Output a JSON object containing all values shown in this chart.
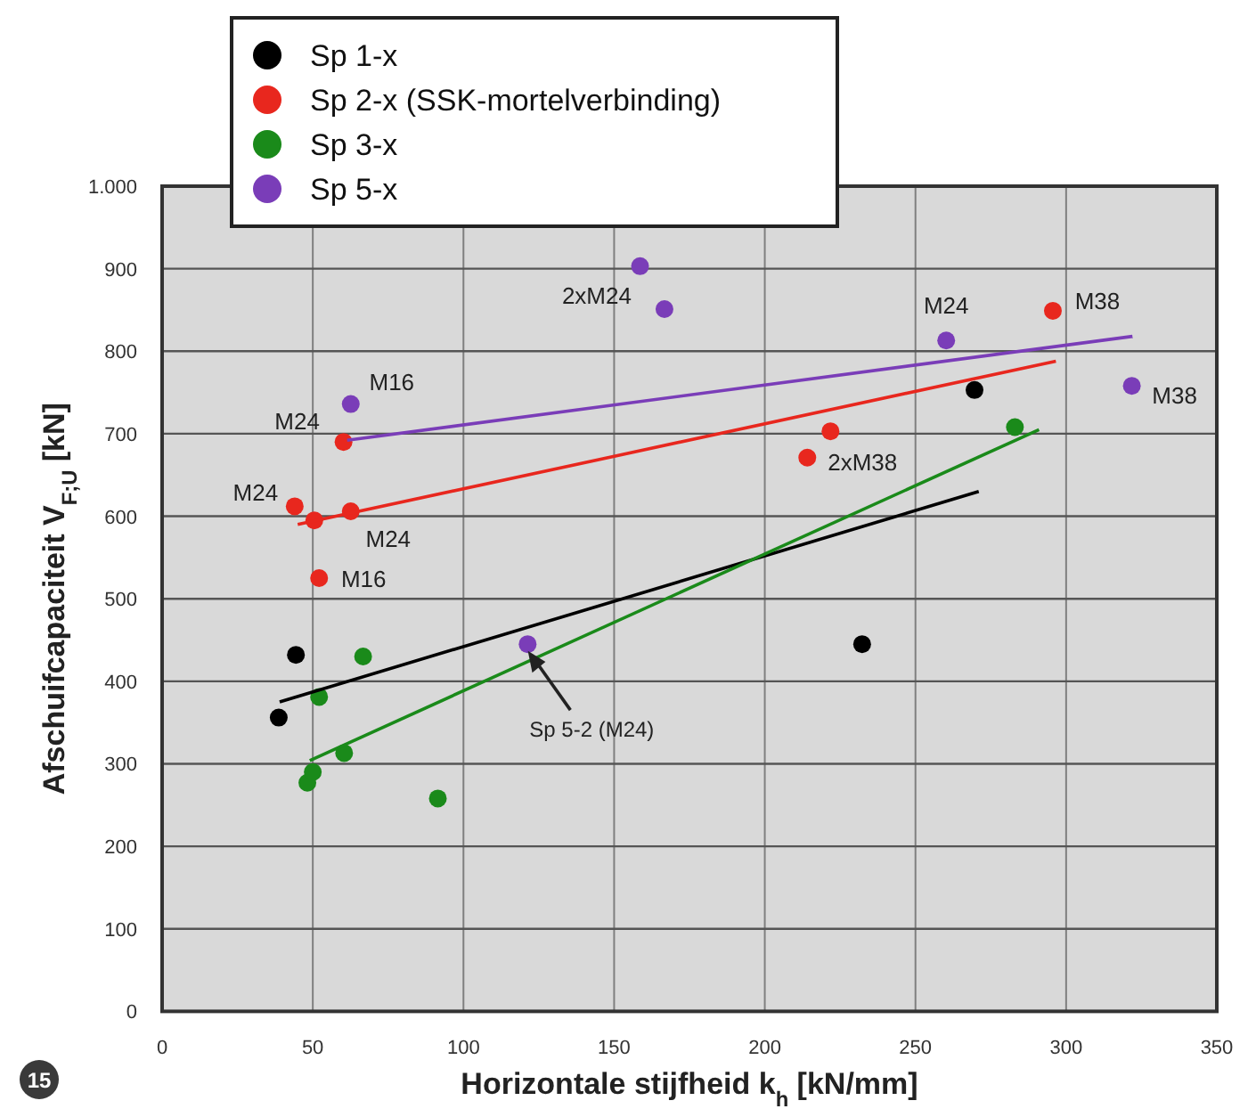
{
  "chart_data": {
    "type": "scatter",
    "xlabel": "Horizontale stijfheid k$_{h}$ [kN/mm]",
    "ylabel": "Afschuifcapaciteit V$_{F;U}$ [kN]",
    "xlim": [
      0,
      350
    ],
    "xticks": [
      0,
      50,
      100,
      150,
      200,
      250,
      300,
      350
    ],
    "ylim": [
      0,
      1000
    ],
    "yticks": [
      0,
      100,
      200,
      300,
      400,
      500,
      600,
      700,
      800,
      900,
      {
        "value": 1000,
        "label": "1.000"
      }
    ],
    "grid": true,
    "legend": "top left",
    "marker": "circle",
    "series": [
      {
        "name": "Sp 1-x",
        "color": "#000000",
        "x": [
          38.7,
          44.4,
          232.3,
          269.6
        ],
        "values": [
          356,
          432,
          445,
          753
        ]
      },
      {
        "name": "Sp 2-x (SSK-mortelverbinding)",
        "color": "#e8271e",
        "x": [
          44,
          50.5,
          52.1,
          60.2,
          62.6,
          214.1,
          221.8,
          295.6
        ],
        "values": [
          612,
          595,
          525,
          690,
          606,
          671,
          703,
          849
        ]
      },
      {
        "name": "Sp 3-x",
        "color": "#1a8a1a",
        "x": [
          48.2,
          50,
          52.1,
          60.4,
          66.7,
          91.5,
          283
        ],
        "values": [
          277,
          290,
          381,
          313,
          430,
          258,
          708
        ]
      },
      {
        "name": "Sp 5-x",
        "color": "#7a3db8",
        "x": [
          62.6,
          121.3,
          158.6,
          166.7,
          260.2,
          321.8
        ],
        "values": [
          736,
          445,
          903,
          851,
          813,
          758
        ]
      },
      {
        "type": "line",
        "marker": "none",
        "color": "#000000",
        "x": [
          39,
          271
        ],
        "values": [
          375,
          630
        ]
      },
      {
        "type": "line",
        "marker": "none",
        "color": "#e8271e",
        "x": [
          45,
          296.6
        ],
        "values": [
          590,
          788
        ]
      },
      {
        "type": "line",
        "marker": "none",
        "color": "#1a8a1a",
        "x": [
          49,
          291
        ],
        "values": [
          304,
          705
        ]
      },
      {
        "type": "line",
        "marker": "none",
        "color": "#7a3db8",
        "x": [
          61.4,
          322
        ],
        "values": [
          692,
          818
        ]
      }
    ],
    "annotations": [
      {
        "text": "2xM24",
        "x": 166.7,
        "y": 851
      },
      {
        "text": "M16",
        "x": 62.6,
        "y": 736
      },
      {
        "text": "M24",
        "x": 60.2,
        "y": 690
      },
      {
        "text": "M24",
        "x": 44,
        "y": 612
      },
      {
        "text": "M24",
        "x": 62.6,
        "y": 606
      },
      {
        "text": "M16",
        "x": 52.1,
        "y": 525
      },
      {
        "text": "M24",
        "x": 260.2,
        "y": 813
      },
      {
        "text": "M38",
        "x": 295.6,
        "y": 849
      },
      {
        "text": "M38",
        "x": 321.8,
        "y": 758
      },
      {
        "text": "2xM38",
        "x": 214.1,
        "y": 671
      },
      {
        "text": "Sp 5-2 (M24)",
        "x": 121.3,
        "y": 445
      },
      "15"
    ]
  }
}
